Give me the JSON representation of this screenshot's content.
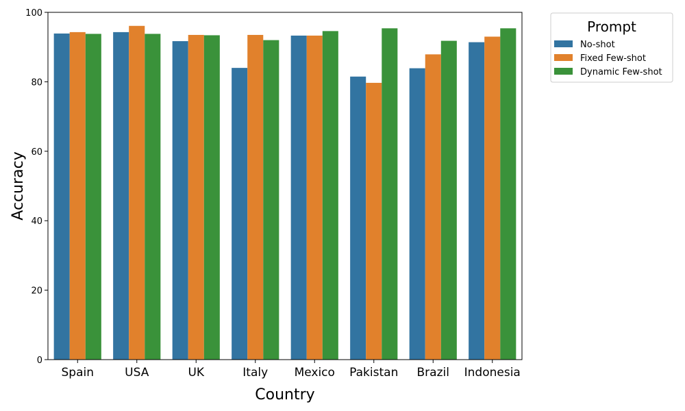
{
  "chart_data": {
    "type": "bar",
    "title": "",
    "xlabel": "Country",
    "ylabel": "Accuracy",
    "ylim": [
      0,
      100
    ],
    "yticks": [
      0,
      20,
      40,
      60,
      80,
      100
    ],
    "categories": [
      "Spain",
      "USA",
      "UK",
      "Italy",
      "Mexico",
      "Pakistan",
      "Brazil",
      "Indonesia"
    ],
    "series": [
      {
        "name": "No-shot",
        "color": "#3274a1",
        "values": [
          93.9,
          94.3,
          91.7,
          84.0,
          93.3,
          81.5,
          83.9,
          91.4
        ]
      },
      {
        "name": "Fixed Few-shot",
        "color": "#e1812c",
        "values": [
          94.3,
          96.1,
          93.5,
          93.5,
          93.3,
          79.7,
          87.9,
          93.0
        ]
      },
      {
        "name": "Dynamic Few-shot",
        "color": "#3a923a",
        "values": [
          93.8,
          93.8,
          93.4,
          92.0,
          94.6,
          95.4,
          91.8,
          95.4
        ]
      }
    ],
    "legend": {
      "title": "Prompt",
      "placement": "outside-top-right"
    },
    "grid": false
  }
}
